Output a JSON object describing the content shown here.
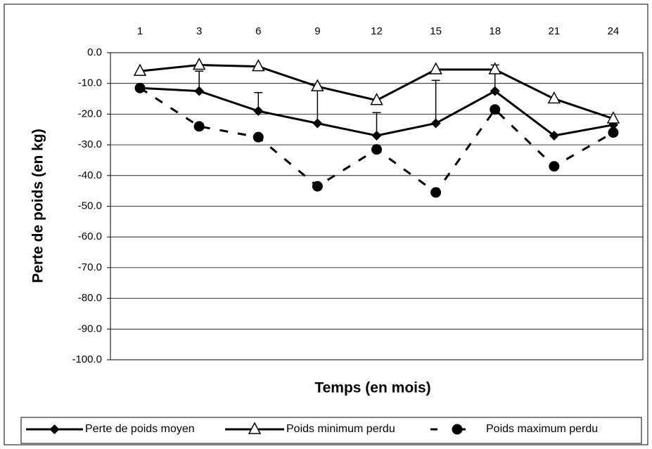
{
  "chart_data": {
    "type": "line",
    "categories": [
      "1",
      "3",
      "6",
      "9",
      "12",
      "15",
      "18",
      "21",
      "24"
    ],
    "x_label": "Temps (en mois)",
    "y_label": "Perte de poids (en kg)",
    "ylim": [
      -100,
      0
    ],
    "yticks": [
      {
        "value": 0,
        "label": "0.0"
      },
      {
        "value": -10,
        "label": "-10.0"
      },
      {
        "value": -20,
        "label": "-20.0"
      },
      {
        "value": -30,
        "label": "-30.0"
      },
      {
        "value": -40,
        "label": "-40.0"
      },
      {
        "value": -50,
        "label": "-50.0"
      },
      {
        "value": -60,
        "label": "-60.0"
      },
      {
        "value": -70,
        "label": "-70.0"
      },
      {
        "value": -80,
        "label": "-80.0"
      },
      {
        "value": -90,
        "label": "-90.0"
      },
      {
        "value": -100,
        "label": "-100.0"
      }
    ],
    "grid": true,
    "series": [
      {
        "name": "Perte de poids moyen",
        "color": "#000000",
        "marker": "diamond",
        "dash": false,
        "values": [
          -11.5,
          -12.5,
          -19,
          -23,
          -27,
          -23,
          -12.5,
          -27,
          -23.5
        ],
        "errors": [
          null,
          6.5,
          6,
          12,
          7.5,
          14,
          8.5,
          null,
          null
        ]
      },
      {
        "name": "Poids minimum perdu",
        "color": "#000000",
        "marker": "triangle",
        "dash": false,
        "values": [
          -6,
          -4,
          -4.5,
          -11,
          -15.5,
          -5.5,
          -5.5,
          -15,
          -21.5
        ]
      },
      {
        "name": "Poids maximum perdu",
        "color": "#000000",
        "marker": "circle",
        "dash": true,
        "values": [
          -11.5,
          -24,
          -27.5,
          -43.5,
          -31.5,
          -45.5,
          -18.5,
          -37,
          -26
        ]
      }
    ]
  }
}
